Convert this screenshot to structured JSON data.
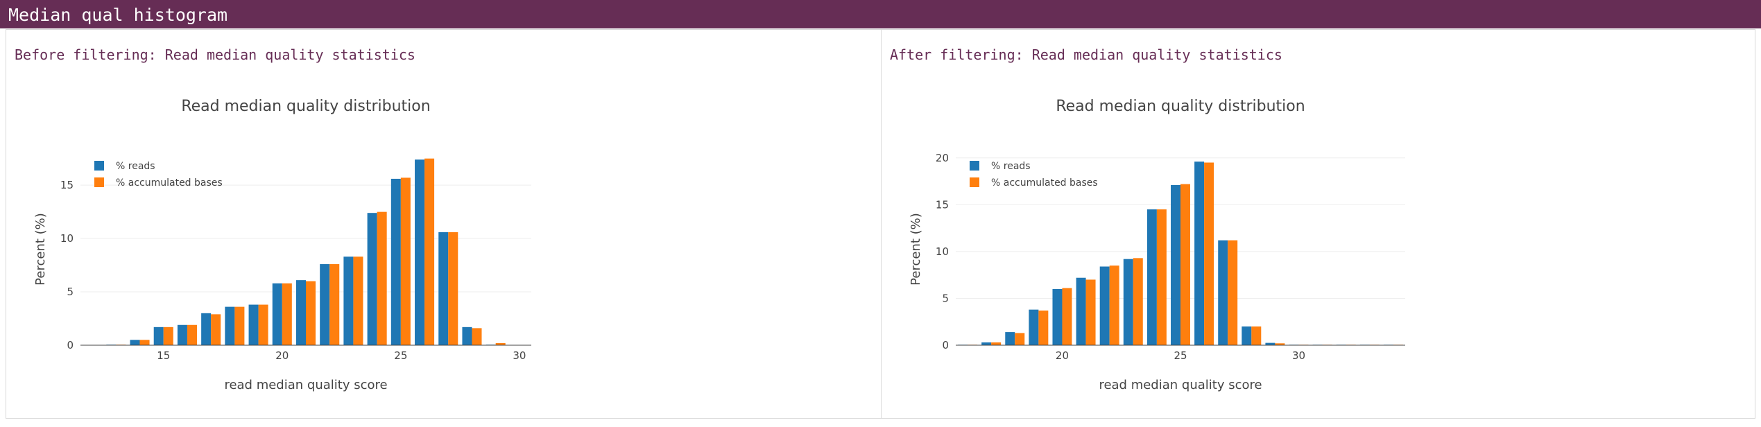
{
  "header": {
    "title": "Median qual histogram"
  },
  "panels": [
    {
      "heading": "Before filtering: Read median quality statistics",
      "chart_title": "Read median quality distribution",
      "xlabel": "read median quality score",
      "ylabel": "Percent (%)",
      "legend": [
        "% reads",
        "% accumulated bases"
      ],
      "ytick_labels": [
        "0",
        "5",
        "10",
        "15"
      ],
      "xtick_labels": [
        "15",
        "20",
        "25",
        "30"
      ]
    },
    {
      "heading": "After filtering: Read median quality statistics",
      "chart_title": "Read median quality distribution",
      "xlabel": "read median quality score",
      "ylabel": "Percent (%)",
      "legend": [
        "% reads",
        "% accumulated bases"
      ],
      "ytick_labels": [
        "0",
        "5",
        "10",
        "15",
        "20"
      ],
      "xtick_labels": [
        "20",
        "25",
        "30"
      ]
    }
  ],
  "colors": {
    "header_bg": "#662d55",
    "reads": "#1f77b4",
    "bases": "#ff7f0e"
  },
  "chart_data": [
    {
      "type": "bar",
      "title": "Read median quality distribution",
      "xlabel": "read median quality score",
      "ylabel": "Percent (%)",
      "x": [
        12,
        13,
        14,
        15,
        16,
        17,
        18,
        19,
        20,
        21,
        22,
        23,
        24,
        25,
        26,
        27,
        28,
        29,
        30
      ],
      "xlim": [
        11.5,
        30.5
      ],
      "ylim": [
        0,
        18
      ],
      "yticks": [
        0,
        5,
        10,
        15
      ],
      "xticks": [
        15,
        20,
        25,
        30
      ],
      "grid": true,
      "legend_position": "top-left",
      "series": [
        {
          "name": "% reads",
          "values": [
            0.02,
            0.05,
            0.5,
            1.7,
            1.9,
            3.0,
            3.6,
            3.8,
            5.8,
            6.1,
            7.6,
            8.3,
            12.4,
            15.6,
            17.4,
            10.6,
            1.7,
            0.05,
            0.02
          ]
        },
        {
          "name": "% accumulated bases",
          "values": [
            0.02,
            0.05,
            0.5,
            1.7,
            1.9,
            2.9,
            3.6,
            3.8,
            5.8,
            6.0,
            7.6,
            8.3,
            12.5,
            15.7,
            17.5,
            10.6,
            1.6,
            0.2,
            0.02
          ]
        }
      ]
    },
    {
      "type": "bar",
      "title": "Read median quality distribution",
      "xlabel": "read median quality score",
      "ylabel": "Percent (%)",
      "x": [
        16,
        17,
        18,
        19,
        20,
        21,
        22,
        23,
        24,
        25,
        26,
        27,
        28,
        29,
        30,
        31,
        32,
        33,
        34
      ],
      "xlim": [
        15.5,
        34.5
      ],
      "ylim": [
        0,
        20.5
      ],
      "yticks": [
        0,
        5,
        10,
        15,
        20
      ],
      "xticks": [
        20,
        25,
        30
      ],
      "grid": true,
      "legend_position": "top-left",
      "series": [
        {
          "name": "% reads",
          "values": [
            0.05,
            0.3,
            1.4,
            3.8,
            6.0,
            7.2,
            8.4,
            9.2,
            14.5,
            17.1,
            19.6,
            11.2,
            2.0,
            0.25,
            0.05,
            0.05,
            0.05,
            0.05,
            0.05
          ]
        },
        {
          "name": "% accumulated bases",
          "values": [
            0.05,
            0.3,
            1.3,
            3.7,
            6.1,
            7.0,
            8.5,
            9.3,
            14.5,
            17.2,
            19.5,
            11.2,
            2.0,
            0.2,
            0.05,
            0.05,
            0.05,
            0.05,
            0.05
          ]
        }
      ]
    }
  ]
}
